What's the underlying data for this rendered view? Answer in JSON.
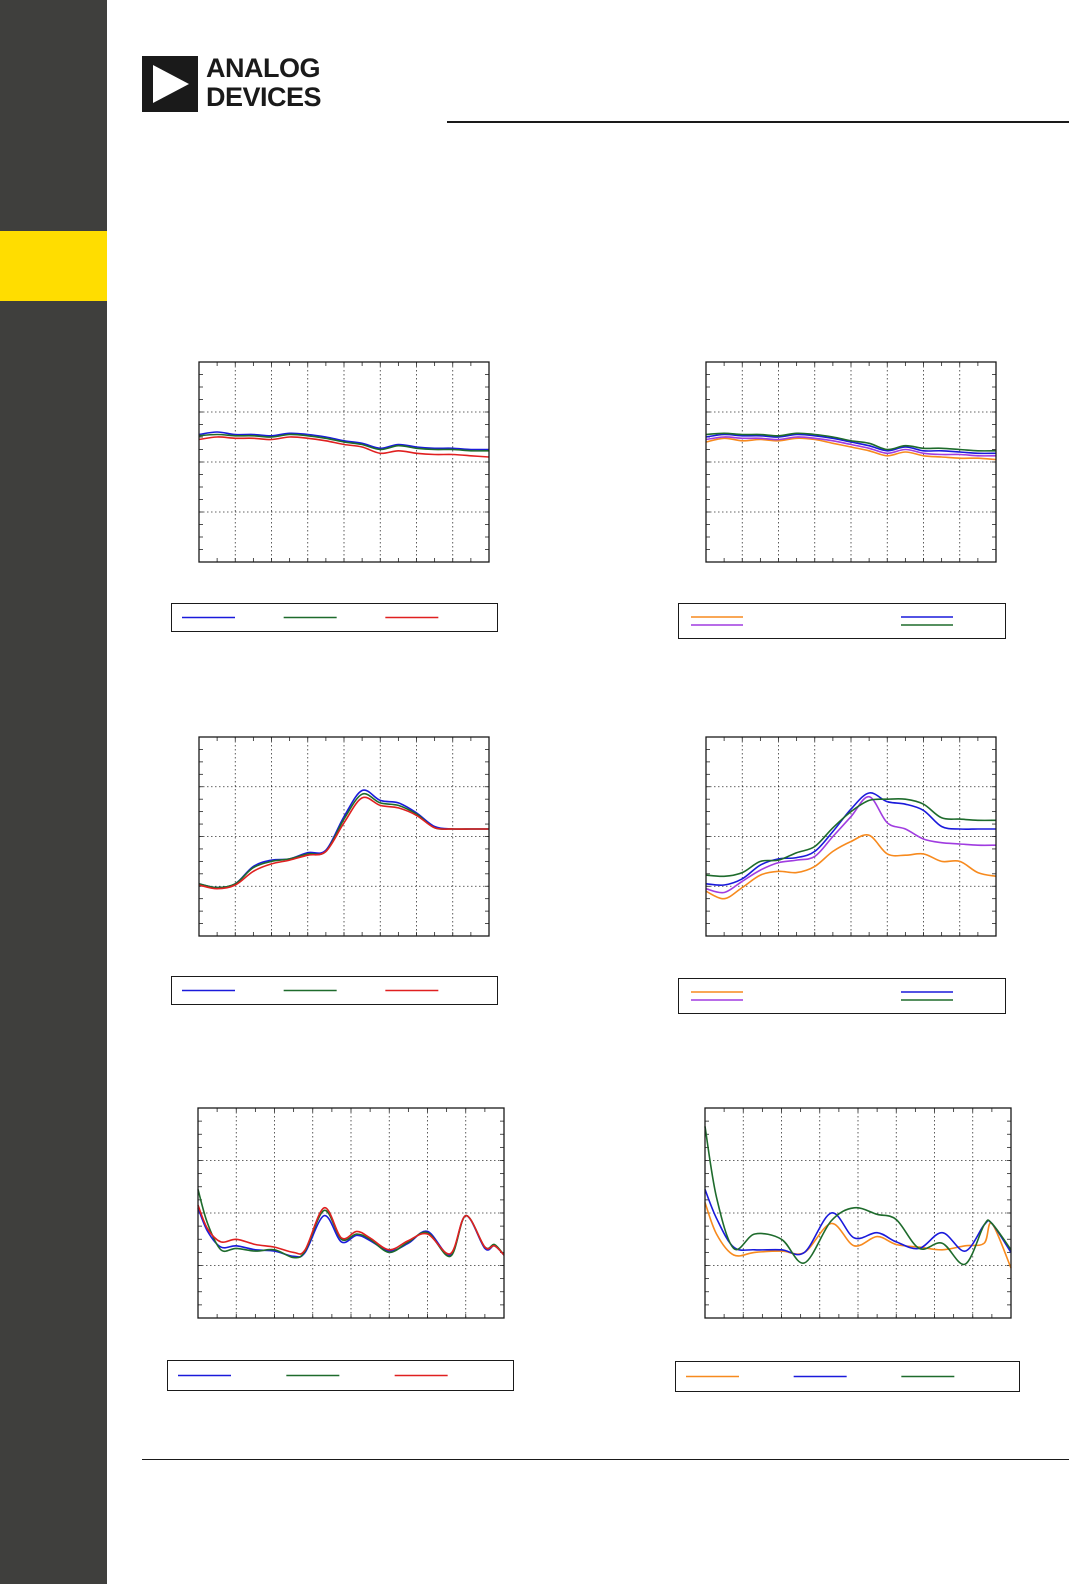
{
  "brand": {
    "line1": "ANALOG",
    "line2": "DEVICES"
  },
  "colors": {
    "sidebar": "#3f3f3d",
    "tab": "#ffdd00",
    "blue": "#1a1adb",
    "green": "#1e6b2c",
    "red": "#e02020",
    "orange": "#f78a1e",
    "purple": "#a03ce0"
  },
  "chart_data": [
    {
      "type": "line",
      "xlim": [
        0,
        8
      ],
      "ylim": [
        0,
        8
      ],
      "series": [
        {
          "color": "blue",
          "x": [
            0,
            0.5,
            1,
            1.5,
            2,
            2.5,
            3,
            3.5,
            4,
            4.5,
            5,
            5.5,
            6,
            6.5,
            7,
            7.5,
            8
          ],
          "y": [
            5.1,
            5.2,
            5.1,
            5.1,
            5.05,
            5.15,
            5.1,
            5.0,
            4.85,
            4.75,
            4.55,
            4.7,
            4.6,
            4.55,
            4.55,
            4.5,
            4.5
          ]
        },
        {
          "color": "green",
          "x": [
            0,
            0.5,
            1,
            1.5,
            2,
            2.5,
            3,
            3.5,
            4,
            4.5,
            5,
            5.5,
            6,
            6.5,
            7,
            7.5,
            8
          ],
          "y": [
            5.05,
            5.1,
            5.05,
            5.05,
            5.0,
            5.1,
            5.05,
            4.95,
            4.8,
            4.7,
            4.5,
            4.65,
            4.55,
            4.5,
            4.5,
            4.45,
            4.45
          ]
        },
        {
          "color": "red",
          "x": [
            0,
            0.5,
            1,
            1.5,
            2,
            2.5,
            3,
            3.5,
            4,
            4.5,
            5,
            5.5,
            6,
            6.5,
            7,
            7.5,
            8
          ],
          "y": [
            4.9,
            5.0,
            4.95,
            4.95,
            4.9,
            5.0,
            4.95,
            4.85,
            4.7,
            4.6,
            4.35,
            4.45,
            4.35,
            4.3,
            4.3,
            4.25,
            4.2
          ]
        }
      ]
    },
    {
      "type": "line",
      "xlim": [
        0,
        8
      ],
      "ylim": [
        0,
        8
      ],
      "series": [
        {
          "color": "orange",
          "x": [
            0,
            0.5,
            1,
            1.5,
            2,
            2.5,
            3,
            3.5,
            4,
            4.5,
            5,
            5.5,
            6,
            6.5,
            7,
            7.5,
            8
          ],
          "y": [
            4.8,
            4.95,
            4.85,
            4.9,
            4.85,
            4.95,
            4.9,
            4.75,
            4.6,
            4.45,
            4.25,
            4.4,
            4.25,
            4.2,
            4.15,
            4.15,
            4.1
          ]
        },
        {
          "color": "purple",
          "x": [
            0,
            0.5,
            1,
            1.5,
            2,
            2.5,
            3,
            3.5,
            4,
            4.5,
            5,
            5.5,
            6,
            6.5,
            7,
            7.5,
            8
          ],
          "y": [
            4.9,
            5.0,
            4.95,
            4.95,
            4.9,
            5.0,
            4.95,
            4.85,
            4.7,
            4.55,
            4.35,
            4.5,
            4.35,
            4.3,
            4.3,
            4.25,
            4.25
          ]
        },
        {
          "color": "blue",
          "x": [
            0,
            0.5,
            1,
            1.5,
            2,
            2.5,
            3,
            3.5,
            4,
            4.5,
            5,
            5.5,
            6,
            6.5,
            7,
            7.5,
            8
          ],
          "y": [
            5.0,
            5.1,
            5.05,
            5.05,
            5.0,
            5.1,
            5.05,
            4.95,
            4.8,
            4.65,
            4.45,
            4.6,
            4.45,
            4.45,
            4.4,
            4.35,
            4.35
          ]
        },
        {
          "color": "green",
          "x": [
            0,
            0.5,
            1,
            1.5,
            2,
            2.5,
            3,
            3.5,
            4,
            4.5,
            5,
            5.5,
            6,
            6.5,
            7,
            7.5,
            8
          ],
          "y": [
            5.1,
            5.15,
            5.1,
            5.1,
            5.05,
            5.15,
            5.1,
            5.0,
            4.85,
            4.75,
            4.5,
            4.65,
            4.55,
            4.55,
            4.5,
            4.45,
            4.45
          ]
        }
      ]
    },
    {
      "type": "line",
      "xlim": [
        0,
        8
      ],
      "ylim": [
        0,
        8
      ],
      "series": [
        {
          "color": "blue",
          "x": [
            0,
            0.5,
            1,
            1.5,
            2,
            2.5,
            3,
            3.5,
            4,
            4.5,
            5,
            5.5,
            6,
            6.5,
            7,
            7.5,
            8
          ],
          "y": [
            2.1,
            1.95,
            2.1,
            2.8,
            3.05,
            3.1,
            3.35,
            3.45,
            4.8,
            5.85,
            5.45,
            5.35,
            4.95,
            4.4,
            4.3,
            4.3,
            4.3
          ]
        },
        {
          "color": "green",
          "x": [
            0,
            0.5,
            1,
            1.5,
            2,
            2.5,
            3,
            3.5,
            4,
            4.5,
            5,
            5.5,
            6,
            6.5,
            7,
            7.5,
            8
          ],
          "y": [
            2.1,
            1.95,
            2.1,
            2.75,
            3.0,
            3.1,
            3.3,
            3.4,
            4.7,
            5.7,
            5.35,
            5.25,
            4.9,
            4.35,
            4.3,
            4.3,
            4.3
          ]
        },
        {
          "color": "red",
          "x": [
            0,
            0.5,
            1,
            1.5,
            2,
            2.5,
            3,
            3.5,
            4,
            4.5,
            5,
            5.5,
            6,
            6.5,
            7,
            7.5,
            8
          ],
          "y": [
            2.05,
            1.9,
            2.05,
            2.6,
            2.9,
            3.05,
            3.25,
            3.4,
            4.55,
            5.55,
            5.25,
            5.15,
            4.85,
            4.35,
            4.3,
            4.3,
            4.3
          ]
        }
      ]
    },
    {
      "type": "line",
      "xlim": [
        0,
        8
      ],
      "ylim": [
        0,
        8
      ],
      "series": [
        {
          "color": "orange",
          "x": [
            0,
            0.5,
            1,
            1.5,
            2,
            2.5,
            3,
            3.5,
            4,
            4.5,
            5,
            5.5,
            6,
            6.5,
            7,
            7.5,
            8
          ],
          "y": [
            1.8,
            1.5,
            1.95,
            2.45,
            2.6,
            2.55,
            2.8,
            3.4,
            3.8,
            4.05,
            3.3,
            3.25,
            3.3,
            3.0,
            3.0,
            2.55,
            2.4
          ]
        },
        {
          "color": "purple",
          "x": [
            0,
            0.5,
            1,
            1.5,
            2,
            2.5,
            3,
            3.5,
            4,
            4.5,
            5,
            5.5,
            6,
            6.5,
            7,
            7.5,
            8
          ],
          "y": [
            1.9,
            1.75,
            2.2,
            2.65,
            2.95,
            3.05,
            3.2,
            4.0,
            4.8,
            5.6,
            4.55,
            4.3,
            3.9,
            3.75,
            3.7,
            3.65,
            3.65
          ]
        },
        {
          "color": "blue",
          "x": [
            0,
            0.5,
            1,
            1.5,
            2,
            2.5,
            3,
            3.5,
            4,
            4.5,
            5,
            5.5,
            6,
            6.5,
            7,
            7.5,
            8
          ],
          "y": [
            2.1,
            2.05,
            2.3,
            2.85,
            3.1,
            3.15,
            3.4,
            4.2,
            5.1,
            5.75,
            5.4,
            5.3,
            5.05,
            4.4,
            4.3,
            4.3,
            4.3
          ]
        },
        {
          "color": "green",
          "x": [
            0,
            0.5,
            1,
            1.5,
            2,
            2.5,
            3,
            3.5,
            4,
            4.5,
            5,
            5.5,
            6,
            6.5,
            7,
            7.5,
            8
          ],
          "y": [
            2.45,
            2.4,
            2.55,
            3.0,
            3.05,
            3.35,
            3.6,
            4.35,
            5.0,
            5.45,
            5.5,
            5.5,
            5.3,
            4.75,
            4.7,
            4.65,
            4.65
          ]
        }
      ]
    },
    {
      "type": "line",
      "xlim": [
        0,
        8
      ],
      "ylim": [
        0,
        8
      ],
      "series": [
        {
          "color": "blue",
          "x": [
            0,
            0.25,
            0.6,
            1,
            1.5,
            2,
            2.5,
            2.8,
            3.3,
            3.75,
            4.15,
            4.5,
            5,
            5.5,
            6,
            6.6,
            7,
            7.5,
            7.75,
            8
          ],
          "y": [
            4.2,
            3.3,
            2.7,
            2.75,
            2.6,
            2.55,
            2.35,
            2.5,
            3.9,
            2.9,
            3.15,
            2.95,
            2.55,
            2.85,
            3.3,
            2.4,
            3.9,
            2.65,
            2.75,
            2.4
          ]
        },
        {
          "color": "green",
          "x": [
            0,
            0.25,
            0.6,
            1,
            1.5,
            2,
            2.5,
            2.8,
            3.3,
            3.75,
            4.15,
            4.5,
            5,
            5.5,
            6,
            6.6,
            7,
            7.5,
            7.75,
            8
          ],
          "y": [
            4.9,
            3.6,
            2.6,
            2.65,
            2.55,
            2.6,
            2.3,
            2.55,
            4.1,
            3.0,
            3.2,
            3.0,
            2.5,
            2.9,
            3.25,
            2.35,
            3.9,
            2.7,
            2.8,
            2.4
          ]
        },
        {
          "color": "red",
          "x": [
            0,
            0.25,
            0.6,
            1,
            1.5,
            2,
            2.5,
            2.8,
            3.3,
            3.75,
            4.15,
            4.5,
            5,
            5.5,
            6,
            6.6,
            7,
            7.5,
            7.75,
            8
          ],
          "y": [
            4.3,
            3.4,
            2.9,
            3.0,
            2.8,
            2.7,
            2.5,
            2.6,
            4.2,
            3.05,
            3.3,
            3.05,
            2.6,
            2.95,
            3.2,
            2.45,
            3.9,
            2.7,
            2.75,
            2.4
          ]
        }
      ]
    },
    {
      "type": "line",
      "xlim": [
        0,
        8
      ],
      "ylim": [
        0,
        8
      ],
      "series": [
        {
          "color": "orange",
          "x": [
            0,
            0.3,
            0.75,
            1.3,
            2,
            2.6,
            3.3,
            3.9,
            4.5,
            5,
            5.6,
            6.2,
            6.8,
            7.3,
            7.5,
            8
          ],
          "y": [
            4.4,
            3.2,
            2.4,
            2.5,
            2.55,
            2.5,
            3.6,
            2.75,
            3.1,
            2.8,
            2.7,
            2.6,
            2.75,
            2.85,
            3.6,
            1.9
          ]
        },
        {
          "color": "blue",
          "x": [
            0,
            0.3,
            0.75,
            1.3,
            2,
            2.6,
            3.3,
            3.9,
            4.5,
            5,
            5.6,
            6.2,
            6.8,
            7.3,
            7.5,
            8
          ],
          "y": [
            4.9,
            3.8,
            2.7,
            2.6,
            2.6,
            2.5,
            4.0,
            3.05,
            3.25,
            2.9,
            2.65,
            3.25,
            2.55,
            3.55,
            3.6,
            2.5
          ]
        },
        {
          "color": "green",
          "x": [
            0,
            0.3,
            0.75,
            1.3,
            2,
            2.6,
            3.3,
            3.9,
            4.5,
            5,
            5.6,
            6.2,
            6.8,
            7.3,
            7.5,
            8
          ],
          "y": [
            7.3,
            4.6,
            2.65,
            3.2,
            3.0,
            2.1,
            3.7,
            4.2,
            3.95,
            3.75,
            2.65,
            2.85,
            2.05,
            3.55,
            3.6,
            2.6
          ]
        }
      ]
    }
  ],
  "legends": [
    [
      "blue",
      "green",
      "red"
    ],
    [
      "orange",
      "blue",
      "purple",
      "green"
    ],
    [
      "blue",
      "green",
      "red"
    ],
    [
      "orange",
      "blue",
      "purple",
      "green"
    ],
    [
      "blue",
      "green",
      "red"
    ],
    [
      "orange",
      "blue",
      "green"
    ]
  ]
}
